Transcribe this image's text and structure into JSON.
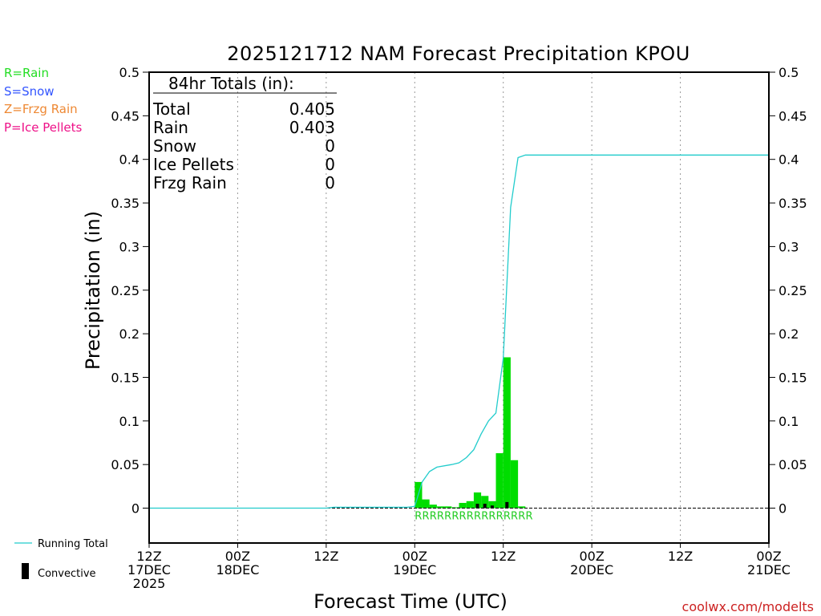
{
  "chart_data": {
    "type": "bar",
    "title": "2025121712 NAM Forecast Precipitation KPOU",
    "ylabel": "Precipitation (in)",
    "xlabel": "Forecast Time (UTC)",
    "ylim": [
      -0.04,
      0.5
    ],
    "xlim_hours": [
      0,
      84
    ],
    "y_ticks": [
      0,
      0.05,
      0.1,
      0.15,
      0.2,
      0.25,
      0.3,
      0.35,
      0.4,
      0.45,
      0.5
    ],
    "y_tick_labels": [
      "0",
      "0.05",
      "0.1",
      "0.15",
      "0.2",
      "0.25",
      "0.3",
      "0.35",
      "0.4",
      "0.45",
      "0.5"
    ],
    "x_ticks": [
      {
        "hour": 0,
        "l1": "12Z",
        "l2": "17DEC",
        "l3": "2025"
      },
      {
        "hour": 12,
        "l1": "00Z",
        "l2": "18DEC",
        "l3": ""
      },
      {
        "hour": 24,
        "l1": "12Z",
        "l2": "",
        "l3": ""
      },
      {
        "hour": 36,
        "l1": "00Z",
        "l2": "19DEC",
        "l3": ""
      },
      {
        "hour": 48,
        "l1": "12Z",
        "l2": "",
        "l3": ""
      },
      {
        "hour": 60,
        "l1": "00Z",
        "l2": "20DEC",
        "l3": ""
      },
      {
        "hour": 72,
        "l1": "12Z",
        "l2": "",
        "l3": ""
      },
      {
        "hour": 84,
        "l1": "00Z",
        "l2": "21DEC",
        "l3": ""
      }
    ],
    "grid": "vertical dotted",
    "totals": {
      "heading": "84hr Totals (in):",
      "rows": [
        {
          "label": "Total",
          "value": "0.405"
        },
        {
          "label": "Rain",
          "value": "0.403"
        },
        {
          "label": "Snow",
          "value": "0"
        },
        {
          "label": "Ice Pellets",
          "value": "0"
        },
        {
          "label": "Frzg Rain",
          "value": "0"
        }
      ]
    },
    "ptype_legend": [
      {
        "label": "R=Rain",
        "color": "#22dd22"
      },
      {
        "label": "S=Snow",
        "color": "#3355ff"
      },
      {
        "label": "Z=Frzg Rain",
        "color": "#ee8833"
      },
      {
        "label": "P=Ice Pellets",
        "color": "#ee1188"
      }
    ],
    "series_legend": {
      "running_total": "Running Total",
      "convective": "Convective"
    },
    "ptype_codes": "RRRRRRRRRRRRRRRR",
    "bars": [
      {
        "hour": 37,
        "value": 0.03
      },
      {
        "hour": 38,
        "value": 0.01
      },
      {
        "hour": 39,
        "value": 0.004
      },
      {
        "hour": 40,
        "value": 0.002
      },
      {
        "hour": 41,
        "value": 0.002
      },
      {
        "hour": 42,
        "value": 0.001
      },
      {
        "hour": 43,
        "value": 0.006
      },
      {
        "hour": 44,
        "value": 0.008
      },
      {
        "hour": 45,
        "value": 0.018
      },
      {
        "hour": 46,
        "value": 0.014
      },
      {
        "hour": 47,
        "value": 0.008
      },
      {
        "hour": 48,
        "value": 0.063
      },
      {
        "hour": 49,
        "value": 0.173
      },
      {
        "hour": 50,
        "value": 0.055
      },
      {
        "hour": 51,
        "value": 0.002
      }
    ],
    "convective": [
      {
        "hour": 45,
        "value": 0.005
      },
      {
        "hour": 46,
        "value": 0.005
      },
      {
        "hour": 47,
        "value": 0.003
      },
      {
        "hour": 49,
        "value": 0.007
      }
    ],
    "running_total": [
      {
        "hour": 0,
        "value": 0
      },
      {
        "hour": 24,
        "value": 0
      },
      {
        "hour": 25,
        "value": 0.001
      },
      {
        "hour": 35,
        "value": 0.001
      },
      {
        "hour": 36,
        "value": 0.002
      },
      {
        "hour": 37,
        "value": 0.03
      },
      {
        "hour": 38,
        "value": 0.042
      },
      {
        "hour": 39,
        "value": 0.047
      },
      {
        "hour": 41,
        "value": 0.05
      },
      {
        "hour": 42,
        "value": 0.052
      },
      {
        "hour": 43,
        "value": 0.058
      },
      {
        "hour": 44,
        "value": 0.067
      },
      {
        "hour": 45,
        "value": 0.085
      },
      {
        "hour": 46,
        "value": 0.1
      },
      {
        "hour": 47,
        "value": 0.109
      },
      {
        "hour": 48,
        "value": 0.172
      },
      {
        "hour": 49,
        "value": 0.345
      },
      {
        "hour": 50,
        "value": 0.402
      },
      {
        "hour": 51,
        "value": 0.405
      },
      {
        "hour": 84,
        "value": 0.405
      }
    ],
    "colors": {
      "bar": "#00dd00",
      "convective": "#000000",
      "running_total": "#22cccc",
      "rain_code": "#22cc22",
      "grid": "#999999"
    }
  },
  "credit": "coolwx.com/modelts"
}
